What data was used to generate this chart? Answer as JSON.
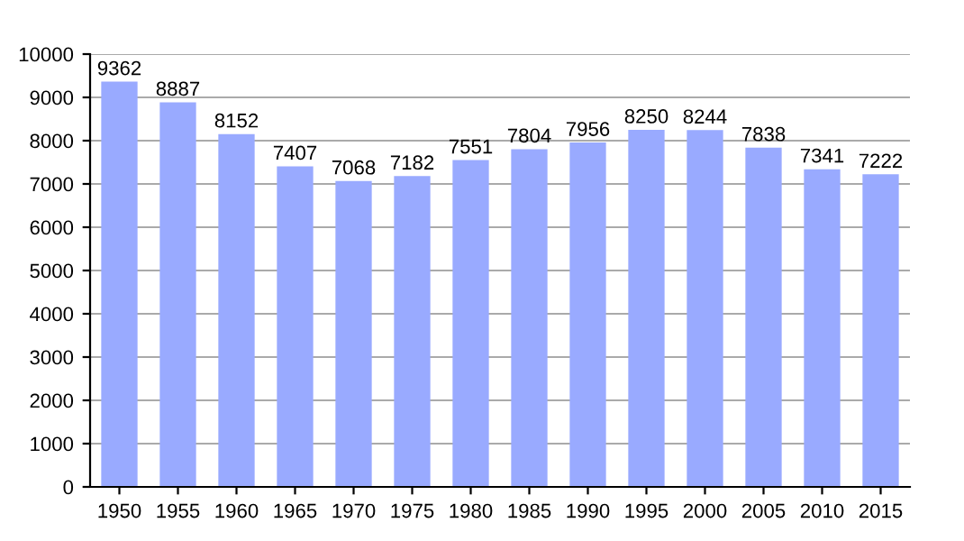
{
  "chart_data": {
    "type": "bar",
    "categories": [
      "1950",
      "1955",
      "1960",
      "1965",
      "1970",
      "1975",
      "1980",
      "1985",
      "1990",
      "1995",
      "2000",
      "2005",
      "2010",
      "2015"
    ],
    "values": [
      9362,
      8887,
      8152,
      7407,
      7068,
      7182,
      7551,
      7804,
      7956,
      8250,
      8244,
      7838,
      7341,
      7222
    ],
    "color": "#99aaff",
    "data_labels": true,
    "grid": "y",
    "legend": false,
    "ylim": [
      0,
      10000
    ],
    "yticks": [
      0,
      1000,
      2000,
      3000,
      4000,
      5000,
      6000,
      7000,
      8000,
      9000,
      10000
    ]
  }
}
